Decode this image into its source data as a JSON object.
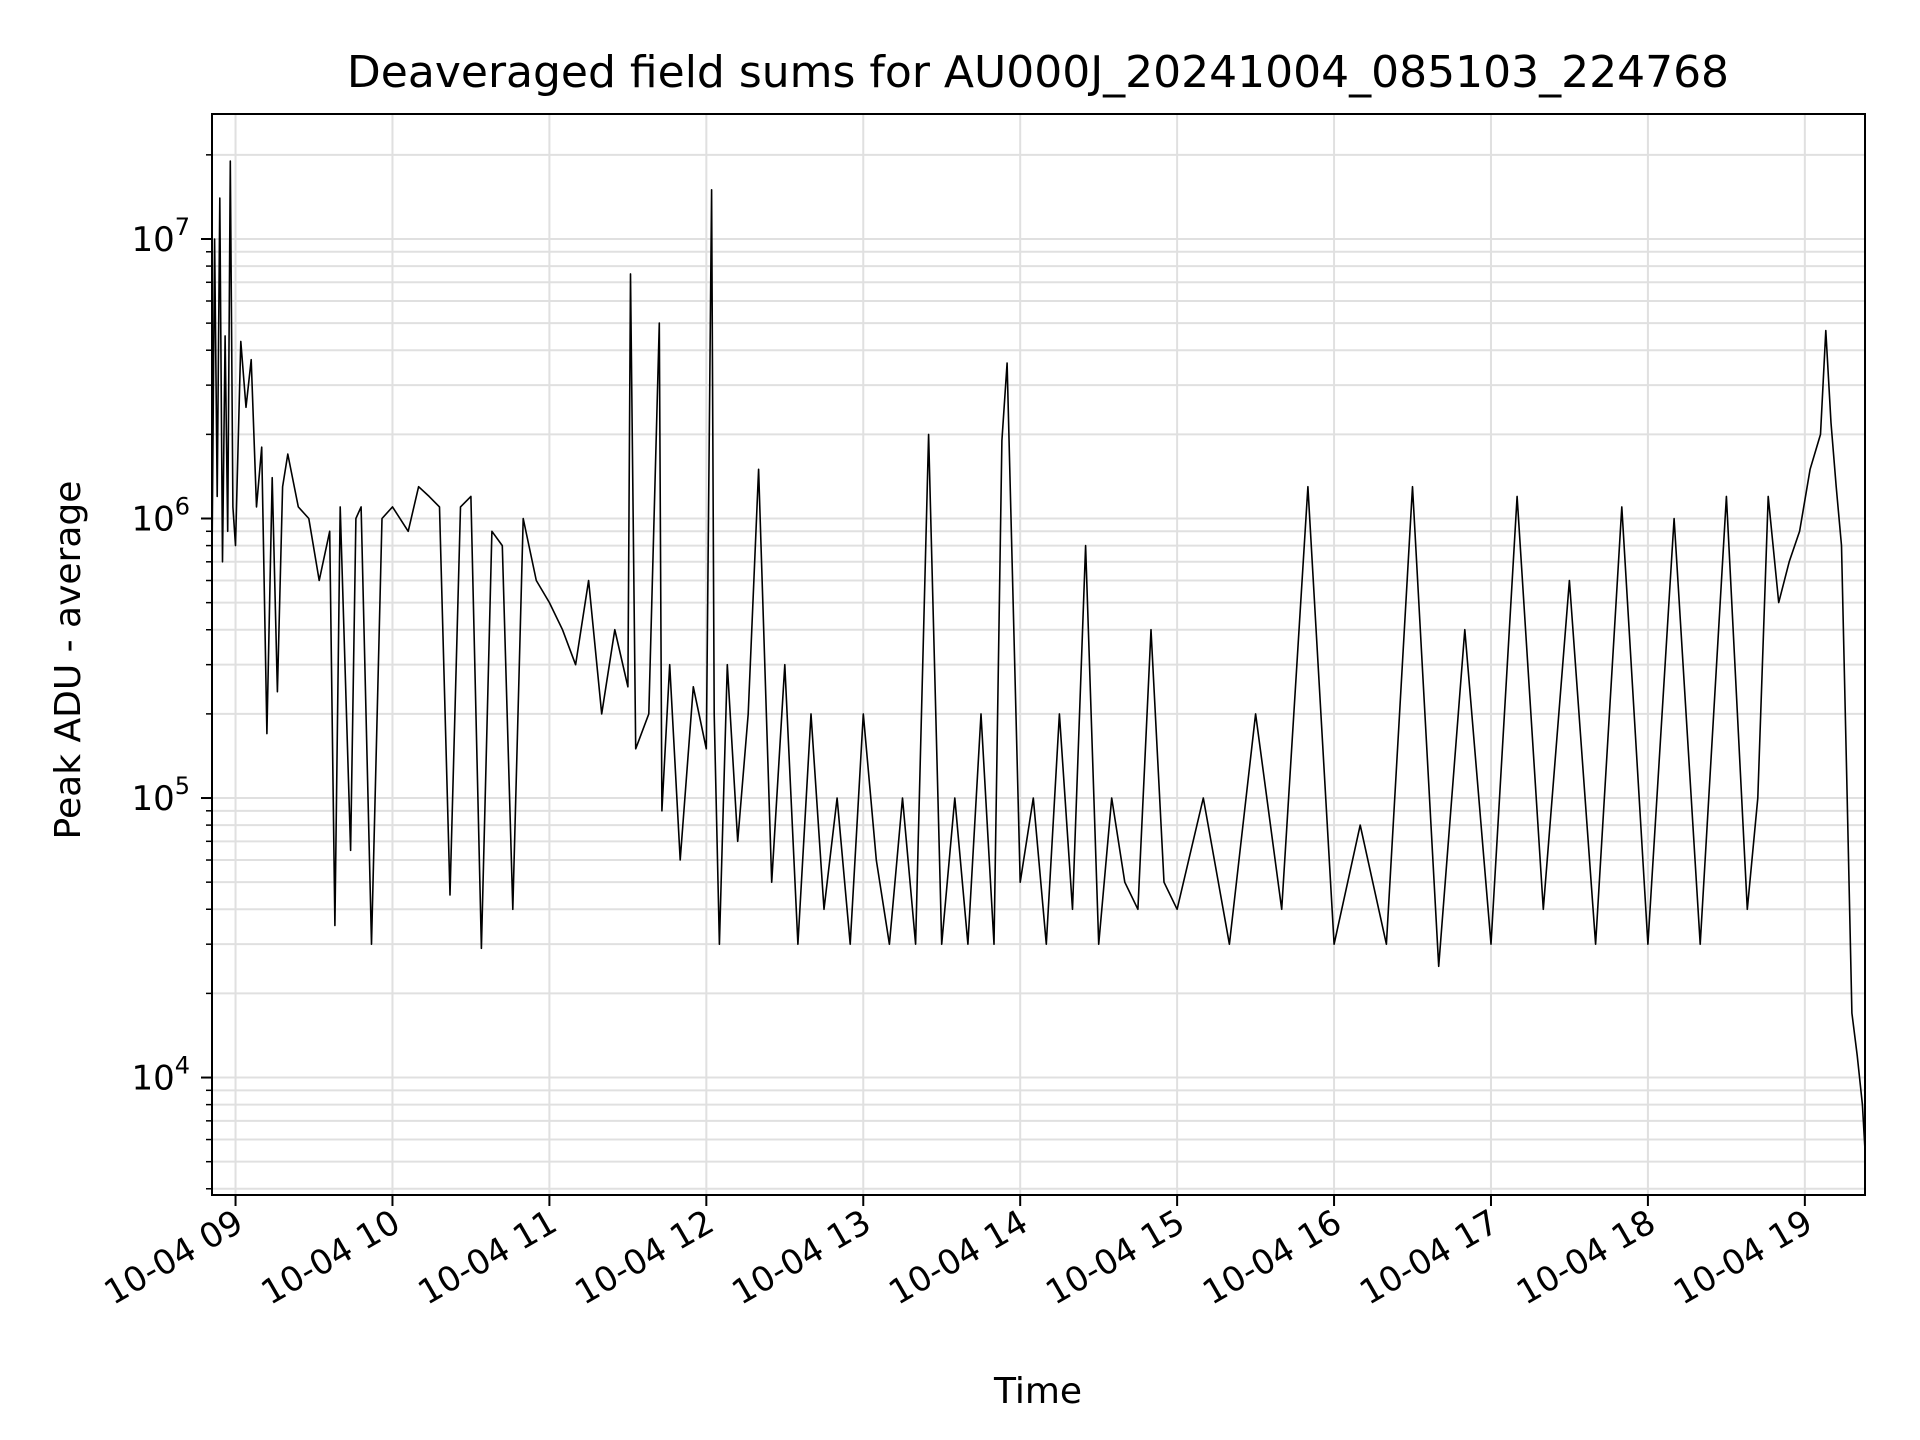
{
  "chart_data": {
    "type": "line",
    "title": "Deaveraged field sums for AU000J_20241004_085103_224768",
    "xlabel": "Time",
    "ylabel": "Peak ADU - average",
    "y_scale": "log",
    "ylim": [
      3800,
      28000000
    ],
    "xlim": [
      "2024-10-04 08:51",
      "2024-10-04 19:23"
    ],
    "x_ticks": [
      {
        "t": "2024-10-04 09:00",
        "label": "10-04 09"
      },
      {
        "t": "2024-10-04 10:00",
        "label": "10-04 10"
      },
      {
        "t": "2024-10-04 11:00",
        "label": "10-04 11"
      },
      {
        "t": "2024-10-04 12:00",
        "label": "10-04 12"
      },
      {
        "t": "2024-10-04 13:00",
        "label": "10-04 13"
      },
      {
        "t": "2024-10-04 14:00",
        "label": "10-04 14"
      },
      {
        "t": "2024-10-04 15:00",
        "label": "10-04 15"
      },
      {
        "t": "2024-10-04 16:00",
        "label": "10-04 16"
      },
      {
        "t": "2024-10-04 17:00",
        "label": "10-04 17"
      },
      {
        "t": "2024-10-04 18:00",
        "label": "10-04 18"
      },
      {
        "t": "2024-10-04 19:00",
        "label": "10-04 19"
      }
    ],
    "y_ticks": [
      {
        "value": 10000,
        "base": "10",
        "exp": "4"
      },
      {
        "value": 100000,
        "base": "10",
        "exp": "5"
      },
      {
        "value": 1000000,
        "base": "10",
        "exp": "6"
      },
      {
        "value": 10000000,
        "base": "10",
        "exp": "7"
      }
    ],
    "grid": true,
    "line_color": "#000000",
    "grid_color": "#e0e0e0",
    "series": [
      {
        "x": [
          "2024-10-04 08:51",
          "2024-10-04 08:52",
          "2024-10-04 08:53",
          "2024-10-04 08:54",
          "2024-10-04 08:55",
          "2024-10-04 08:56",
          "2024-10-04 08:57",
          "2024-10-04 08:58",
          "2024-10-04 08:59",
          "2024-10-04 09:00",
          "2024-10-04 09:02",
          "2024-10-04 09:04",
          "2024-10-04 09:06",
          "2024-10-04 09:08",
          "2024-10-04 09:10",
          "2024-10-04 09:12",
          "2024-10-04 09:14",
          "2024-10-04 09:16",
          "2024-10-04 09:18",
          "2024-10-04 09:20",
          "2024-10-04 09:24",
          "2024-10-04 09:28",
          "2024-10-04 09:32",
          "2024-10-04 09:36",
          "2024-10-04 09:38",
          "2024-10-04 09:40",
          "2024-10-04 09:44",
          "2024-10-04 09:46",
          "2024-10-04 09:48",
          "2024-10-04 09:52",
          "2024-10-04 09:56",
          "2024-10-04 10:00",
          "2024-10-04 10:06",
          "2024-10-04 10:10",
          "2024-10-04 10:14",
          "2024-10-04 10:18",
          "2024-10-04 10:22",
          "2024-10-04 10:26",
          "2024-10-04 10:30",
          "2024-10-04 10:34",
          "2024-10-04 10:38",
          "2024-10-04 10:42",
          "2024-10-04 10:46",
          "2024-10-04 10:50",
          "2024-10-04 10:55",
          "2024-10-04 11:00",
          "2024-10-04 11:05",
          "2024-10-04 11:10",
          "2024-10-04 11:15",
          "2024-10-04 11:20",
          "2024-10-04 11:25",
          "2024-10-04 11:30",
          "2024-10-04 11:31",
          "2024-10-04 11:33",
          "2024-10-04 11:38",
          "2024-10-04 11:42",
          "2024-10-04 11:43",
          "2024-10-04 11:46",
          "2024-10-04 11:50",
          "2024-10-04 11:55",
          "2024-10-04 12:00",
          "2024-10-04 12:02",
          "2024-10-04 12:03",
          "2024-10-04 12:05",
          "2024-10-04 12:08",
          "2024-10-04 12:12",
          "2024-10-04 12:16",
          "2024-10-04 12:20",
          "2024-10-04 12:25",
          "2024-10-04 12:30",
          "2024-10-04 12:35",
          "2024-10-04 12:40",
          "2024-10-04 12:45",
          "2024-10-04 12:50",
          "2024-10-04 12:55",
          "2024-10-04 13:00",
          "2024-10-04 13:05",
          "2024-10-04 13:10",
          "2024-10-04 13:15",
          "2024-10-04 13:20",
          "2024-10-04 13:25",
          "2024-10-04 13:30",
          "2024-10-04 13:35",
          "2024-10-04 13:40",
          "2024-10-04 13:45",
          "2024-10-04 13:50",
          "2024-10-04 13:53",
          "2024-10-04 13:55",
          "2024-10-04 14:00",
          "2024-10-04 14:05",
          "2024-10-04 14:10",
          "2024-10-04 14:15",
          "2024-10-04 14:20",
          "2024-10-04 14:25",
          "2024-10-04 14:30",
          "2024-10-04 14:35",
          "2024-10-04 14:40",
          "2024-10-04 14:45",
          "2024-10-04 14:50",
          "2024-10-04 14:55",
          "2024-10-04 15:00",
          "2024-10-04 15:10",
          "2024-10-04 15:20",
          "2024-10-04 15:30",
          "2024-10-04 15:40",
          "2024-10-04 15:50",
          "2024-10-04 16:00",
          "2024-10-04 16:10",
          "2024-10-04 16:20",
          "2024-10-04 16:30",
          "2024-10-04 16:40",
          "2024-10-04 16:50",
          "2024-10-04 17:00",
          "2024-10-04 17:10",
          "2024-10-04 17:20",
          "2024-10-04 17:30",
          "2024-10-04 17:40",
          "2024-10-04 17:50",
          "2024-10-04 18:00",
          "2024-10-04 18:10",
          "2024-10-04 18:20",
          "2024-10-04 18:30",
          "2024-10-04 18:38",
          "2024-10-04 18:42",
          "2024-10-04 18:46",
          "2024-10-04 18:50",
          "2024-10-04 18:54",
          "2024-10-04 18:58",
          "2024-10-04 19:02",
          "2024-10-04 19:06",
          "2024-10-04 19:08",
          "2024-10-04 19:10",
          "2024-10-04 19:12",
          "2024-10-04 19:14",
          "2024-10-04 19:16",
          "2024-10-04 19:18",
          "2024-10-04 19:20",
          "2024-10-04 19:22",
          "2024-10-04 19:23"
        ],
        "values": [
          700000,
          10000000,
          1200000,
          14000000,
          700000,
          4500000,
          900000,
          19000000,
          1100000,
          800000,
          4300000,
          2500000,
          3700000,
          1100000,
          1800000,
          170000,
          1400000,
          240000,
          1300000,
          1700000,
          1100000,
          1000000,
          600000,
          900000,
          35000,
          1100000,
          65000,
          1000000,
          1100000,
          30000,
          1000000,
          1100000,
          900000,
          1300000,
          1200000,
          1100000,
          45000,
          1100000,
          1200000,
          29000,
          900000,
          800000,
          40000,
          1000000,
          600000,
          500000,
          400000,
          300000,
          600000,
          200000,
          400000,
          250000,
          7500000,
          150000,
          200000,
          5000000,
          90000,
          300000,
          60000,
          250000,
          150000,
          15000000,
          200000,
          30000,
          300000,
          70000,
          200000,
          1500000,
          50000,
          300000,
          30000,
          200000,
          40000,
          100000,
          30000,
          200000,
          60000,
          30000,
          100000,
          30000,
          2000000,
          30000,
          100000,
          30000,
          200000,
          30000,
          1900000,
          3600000,
          50000,
          100000,
          30000,
          200000,
          40000,
          800000,
          30000,
          100000,
          50000,
          40000,
          400000,
          50000,
          40000,
          100000,
          30000,
          200000,
          40000,
          1300000,
          30000,
          80000,
          30000,
          1300000,
          25000,
          400000,
          30000,
          1200000,
          40000,
          600000,
          30000,
          1100000,
          30000,
          1000000,
          30000,
          1200000,
          40000,
          100000,
          1200000,
          500000,
          700000,
          900000,
          1500000,
          2000000,
          4700000,
          2200000,
          1300000,
          800000,
          120000,
          17000,
          12000,
          8000,
          5500
        ]
      }
    ]
  }
}
